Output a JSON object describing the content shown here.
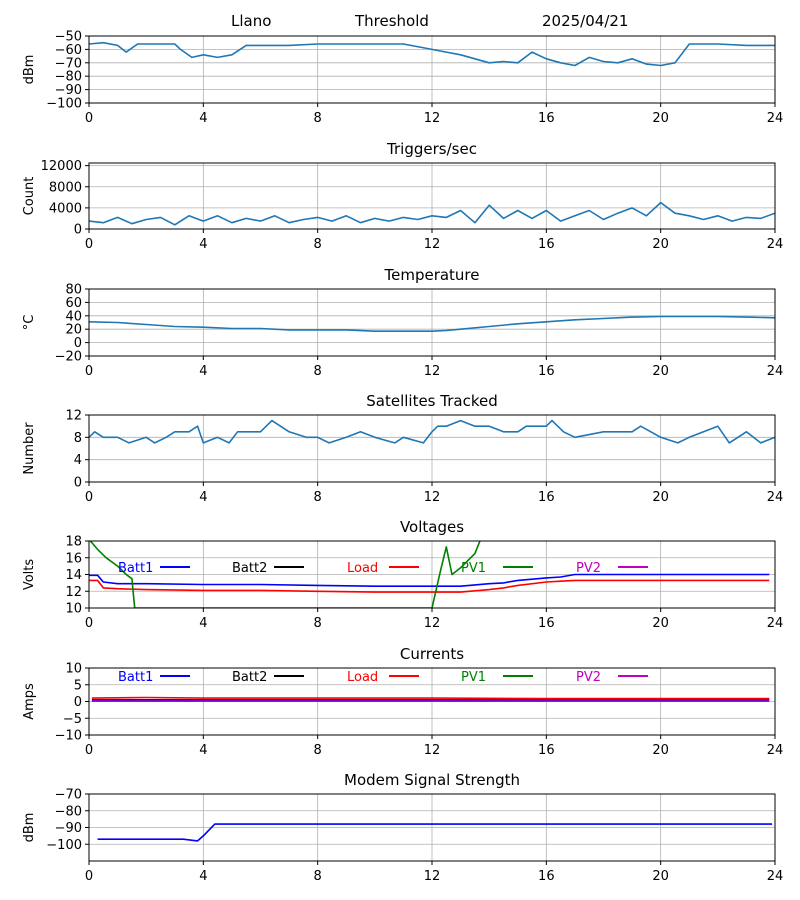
{
  "header": {
    "station": "Llano",
    "mode": "Threshold",
    "date": "2025/04/21"
  },
  "chart_data": [
    {
      "type": "line",
      "title": "",
      "xlabel": "",
      "ylabel": "dBm",
      "xlim": [
        0,
        24
      ],
      "ylim": [
        -100,
        -50
      ],
      "xticks": [
        0,
        4,
        8,
        12,
        16,
        20,
        24
      ],
      "yticks": [
        -100,
        -90,
        -80,
        -70,
        -60,
        -50
      ],
      "grid": true,
      "series": [
        {
          "color": "#1f77b4",
          "x": [
            0,
            0.5,
            1,
            1.3,
            1.7,
            2.5,
            3,
            3.2,
            3.6,
            4,
            4.5,
            5,
            5.5,
            6,
            7,
            8,
            9,
            10,
            11,
            12,
            12.5,
            13,
            13.5,
            14,
            14.5,
            15,
            15.5,
            16,
            16.5,
            17,
            17.5,
            18,
            18.5,
            19,
            19.5,
            20,
            20.5,
            21,
            22,
            23,
            24
          ],
          "y": [
            -56,
            -55,
            -57,
            -62,
            -56,
            -56,
            -56,
            -60,
            -66,
            -64,
            -66,
            -64,
            -57,
            -57,
            -57,
            -56,
            -56,
            -56,
            -56,
            -60,
            -62,
            -64,
            -67,
            -70,
            -69,
            -70,
            -62,
            -67,
            -70,
            -72,
            -66,
            -69,
            -70,
            -67,
            -71,
            -72,
            -70,
            -56,
            -56,
            -57,
            -57
          ]
        }
      ]
    },
    {
      "type": "line",
      "title": "Triggers/sec",
      "xlabel": "",
      "ylabel": "Count",
      "xlim": [
        0,
        24
      ],
      "ylim": [
        0,
        12500
      ],
      "xticks": [
        0,
        4,
        8,
        12,
        16,
        20,
        24
      ],
      "yticks": [
        0,
        4000,
        8000,
        12000
      ],
      "grid": true,
      "series": [
        {
          "color": "#1f77b4",
          "x": [
            0,
            0.5,
            1,
            1.5,
            2,
            2.5,
            3,
            3.5,
            4,
            4.5,
            5,
            5.5,
            6,
            6.5,
            7,
            7.5,
            8,
            8.5,
            9,
            9.5,
            10,
            10.5,
            11,
            11.5,
            12,
            12.5,
            13,
            13.5,
            14,
            14.5,
            15,
            15.5,
            16,
            16.5,
            17,
            17.5,
            18,
            18.5,
            19,
            19.5,
            20,
            20.5,
            21,
            21.5,
            22,
            22.5,
            23,
            23.5,
            24
          ],
          "y": [
            1500,
            1200,
            2200,
            1000,
            1800,
            2200,
            800,
            2500,
            1500,
            2500,
            1200,
            2000,
            1500,
            2500,
            1200,
            1800,
            2200,
            1500,
            2500,
            1200,
            2000,
            1500,
            2200,
            1800,
            2500,
            2200,
            3500,
            1200,
            4500,
            2000,
            3500,
            2000,
            3500,
            1500,
            2500,
            3500,
            1800,
            3000,
            4000,
            2500,
            5000,
            3000,
            2500,
            1800,
            2500,
            1500,
            2200,
            2000,
            3000
          ]
        }
      ]
    },
    {
      "type": "line",
      "title": "Temperature",
      "xlabel": "",
      "ylabel": "°C",
      "xlim": [
        0,
        24
      ],
      "ylim": [
        -20,
        80
      ],
      "xticks": [
        0,
        4,
        8,
        12,
        16,
        20,
        24
      ],
      "yticks": [
        -20,
        0,
        20,
        40,
        60,
        80
      ],
      "grid": true,
      "series": [
        {
          "color": "#1f77b4",
          "x": [
            0,
            1,
            2,
            3,
            4,
            5,
            6,
            7,
            8,
            9,
            10,
            11,
            12,
            12.5,
            13,
            14,
            15,
            16,
            17,
            18,
            19,
            20,
            21,
            22,
            23,
            24
          ],
          "y": [
            31,
            30,
            27,
            24,
            23,
            21,
            21,
            19,
            19,
            19,
            17,
            17,
            17,
            18,
            20,
            24,
            28,
            31,
            34,
            36,
            38,
            39,
            39,
            39,
            38,
            37
          ]
        }
      ]
    },
    {
      "type": "line",
      "title": "Satellites Tracked",
      "xlabel": "",
      "ylabel": "Number",
      "xlim": [
        0,
        24
      ],
      "ylim": [
        0,
        12
      ],
      "xticks": [
        0,
        4,
        8,
        12,
        16,
        20,
        24
      ],
      "yticks": [
        0,
        4,
        8,
        12
      ],
      "grid": true,
      "series": [
        {
          "color": "#1f77b4",
          "x": [
            0,
            0.2,
            0.5,
            1,
            1.4,
            2,
            2.3,
            2.7,
            3,
            3.5,
            3.8,
            4,
            4.5,
            4.9,
            5.2,
            6,
            6.4,
            7,
            7.6,
            8,
            8.4,
            9,
            9.5,
            10,
            10.7,
            11,
            11.7,
            12,
            12.2,
            12.5,
            13,
            13.5,
            14,
            14.5,
            15,
            15.3,
            16,
            16.2,
            16.6,
            17,
            18,
            19,
            19.3,
            20,
            20.6,
            21,
            21.5,
            22,
            22.4,
            23,
            23.5,
            24
          ],
          "y": [
            8,
            9,
            8,
            8,
            7,
            8,
            7,
            8,
            9,
            9,
            10,
            7,
            8,
            7,
            9,
            9,
            11,
            9,
            8,
            8,
            7,
            8,
            9,
            8,
            7,
            8,
            7,
            9,
            10,
            10,
            11,
            10,
            10,
            9,
            9,
            10,
            10,
            11,
            9,
            8,
            9,
            9,
            10,
            8,
            7,
            8,
            9,
            10,
            7,
            9,
            7,
            8
          ]
        }
      ]
    },
    {
      "type": "line",
      "title": "Voltages",
      "xlabel": "",
      "ylabel": "Volts",
      "xlim": [
        0,
        24
      ],
      "ylim": [
        10,
        18
      ],
      "xticks": [
        0,
        4,
        8,
        12,
        16,
        20,
        24
      ],
      "yticks": [
        10,
        12,
        14,
        16,
        18
      ],
      "grid": true,
      "legend": "top",
      "series": [
        {
          "name": "Batt1",
          "color": "#0000ff",
          "x": [
            0,
            0.3,
            0.5,
            1,
            2,
            4,
            6,
            8,
            10,
            12,
            13,
            14,
            14.5,
            15,
            16,
            16.5,
            17,
            18,
            20,
            22,
            23.8
          ],
          "y": [
            13.9,
            13.9,
            13.1,
            12.9,
            12.9,
            12.8,
            12.8,
            12.7,
            12.6,
            12.6,
            12.6,
            12.9,
            13.0,
            13.3,
            13.6,
            13.7,
            14.0,
            14.0,
            14.0,
            14.0,
            14.0
          ]
        },
        {
          "name": "Batt2",
          "color": "#000000",
          "x": [],
          "y": []
        },
        {
          "name": "Load",
          "color": "#ff0000",
          "x": [
            0,
            0.3,
            0.5,
            1,
            2,
            4,
            6,
            8,
            10,
            12,
            13,
            14,
            14.5,
            15,
            16,
            16.5,
            17,
            18,
            20,
            22,
            23.8
          ],
          "y": [
            13.3,
            13.3,
            12.4,
            12.3,
            12.2,
            12.1,
            12.1,
            12.0,
            11.9,
            11.9,
            11.9,
            12.2,
            12.4,
            12.7,
            13.1,
            13.2,
            13.3,
            13.3,
            13.3,
            13.3,
            13.3
          ]
        },
        {
          "name": "PV1",
          "color": "#008000",
          "x": [
            0,
            0.3,
            0.6,
            1,
            1.3,
            1.5,
            1.6,
            12.0,
            12.3,
            12.5,
            12.7,
            13,
            13.5,
            13.7
          ],
          "y": [
            18.2,
            17,
            16,
            15,
            14,
            13.5,
            10,
            10,
            14.5,
            17.3,
            14,
            14.8,
            16.5,
            18.2
          ]
        },
        {
          "name": "PV2",
          "color": "#bf00bf",
          "x": [],
          "y": []
        }
      ]
    },
    {
      "type": "line",
      "title": "Currents",
      "xlabel": "",
      "ylabel": "Amps",
      "xlim": [
        0,
        24
      ],
      "ylim": [
        -10,
        10
      ],
      "xticks": [
        0,
        4,
        8,
        12,
        16,
        20,
        24
      ],
      "yticks": [
        -10,
        -5,
        0,
        5,
        10
      ],
      "grid": true,
      "legend": "top",
      "series": [
        {
          "name": "Batt1",
          "color": "#0000ff",
          "x": [
            0.1,
            23.8
          ],
          "y": [
            0.5,
            0.5
          ]
        },
        {
          "name": "Batt2",
          "color": "#000000",
          "x": [],
          "y": []
        },
        {
          "name": "Load",
          "color": "#ff0000",
          "x": [
            0.1,
            2,
            4,
            8,
            12,
            16,
            20,
            23.8
          ],
          "y": [
            1.0,
            1.2,
            1.0,
            1.0,
            1.0,
            0.9,
            0.9,
            0.9
          ]
        },
        {
          "name": "PV1",
          "color": "#008000",
          "x": [],
          "y": []
        },
        {
          "name": "PV2",
          "color": "#bf00bf",
          "x": [
            0.1,
            23.8
          ],
          "y": [
            0.1,
            0.1
          ]
        }
      ]
    },
    {
      "type": "line",
      "title": "Modem Signal Strength",
      "xlabel": "",
      "ylabel": "dBm",
      "xlim": [
        0,
        24
      ],
      "ylim": [
        -110,
        -70
      ],
      "xticks": [
        0,
        4,
        8,
        12,
        16,
        20,
        24
      ],
      "yticks": [
        -100,
        -90,
        -80,
        -70
      ],
      "grid": true,
      "series": [
        {
          "color": "#0000ff",
          "x": [
            0.3,
            3.3,
            3.8,
            4.0,
            4.4,
            8,
            12,
            16,
            20,
            23.9
          ],
          "y": [
            -97,
            -97,
            -98,
            -95,
            -88,
            -88,
            -88,
            -88,
            -88,
            -88
          ]
        }
      ]
    }
  ]
}
